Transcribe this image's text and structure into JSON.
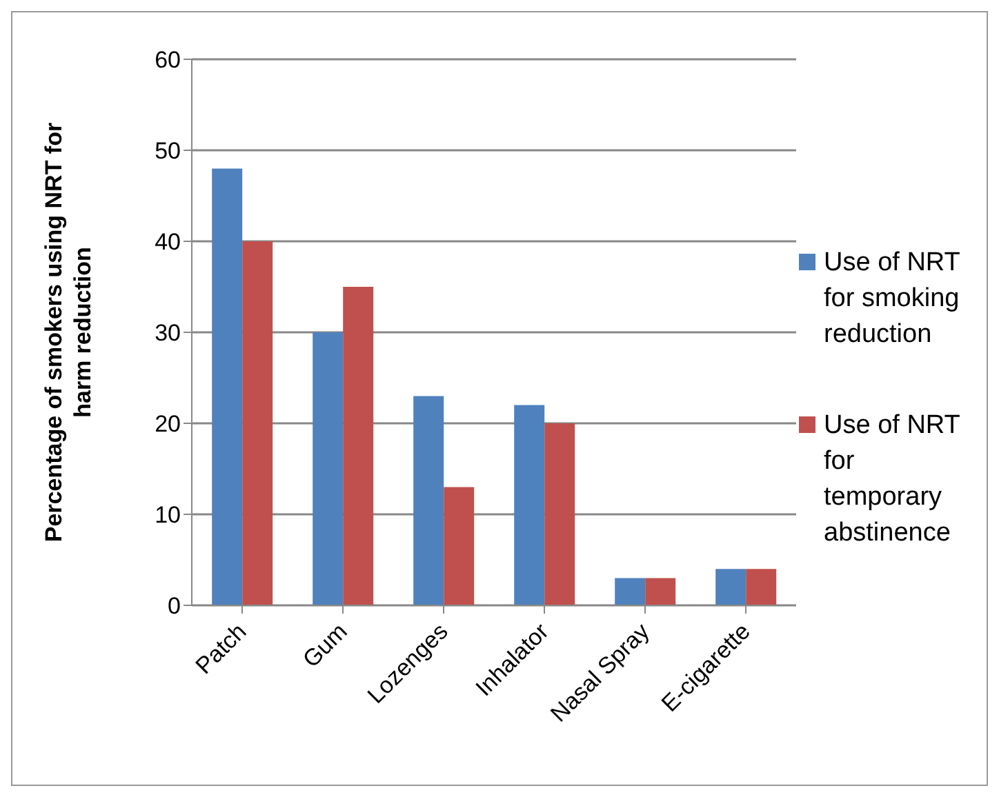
{
  "chart_data": {
    "type": "bar",
    "ylabel": "Percentage of smokers using NRT for harm reduction",
    "categories": [
      "Patch",
      "Gum",
      "Lozenges",
      "Inhalator",
      "Nasal Spray",
      "E-cigarette"
    ],
    "series": [
      {
        "name": "Use of NRT for smoking reduction",
        "color": "#4f81bd",
        "values": [
          48,
          30,
          23,
          22,
          3,
          4
        ]
      },
      {
        "name": "Use of NRT for temporary abstinence",
        "color": "#c0504d",
        "values": [
          40,
          35,
          13,
          20,
          3,
          4
        ]
      }
    ],
    "ylim": [
      0,
      60
    ],
    "yticks": [
      0,
      10,
      20,
      30,
      40,
      50,
      60
    ],
    "grid": "y",
    "legend": "right"
  }
}
